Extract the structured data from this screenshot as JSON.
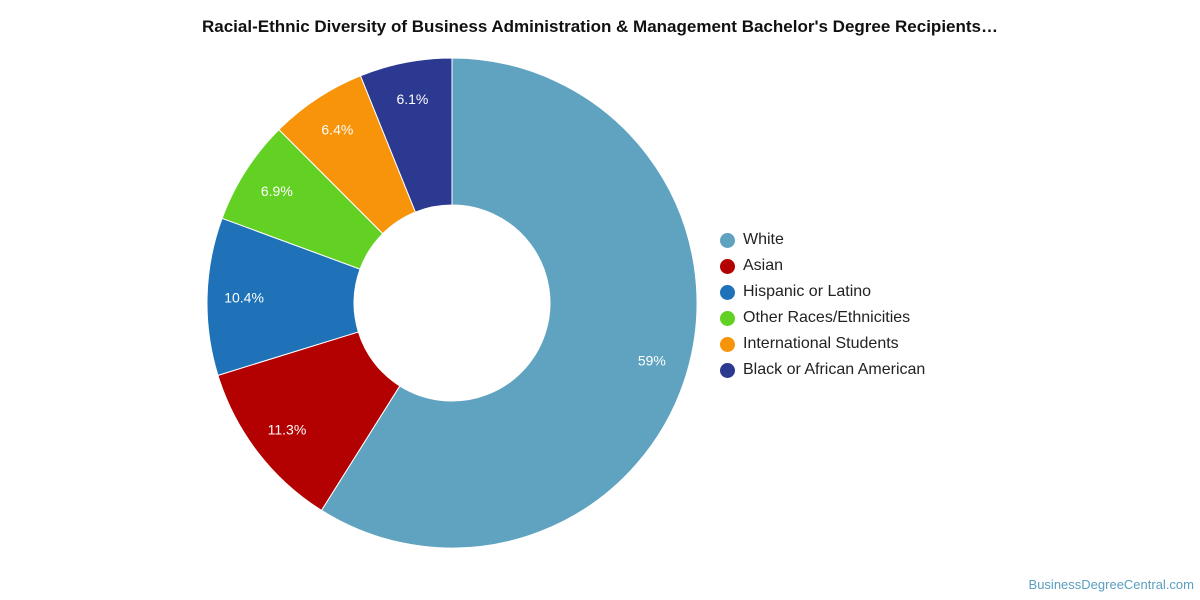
{
  "chart_data": {
    "type": "pie",
    "style": "donut",
    "title": "Racial-Ethnic Diversity of Business Administration & Management Bachelor's Degree Recipients…",
    "start_angle_deg": 0,
    "direction": "clockwise",
    "legend_position": "right",
    "slices": [
      {
        "name": "White",
        "value": 59,
        "label": "59%",
        "color": "#5fa3c0"
      },
      {
        "name": "Asian",
        "value": 11.3,
        "label": "11.3%",
        "color": "#b30000"
      },
      {
        "name": "Hispanic or Latino",
        "value": 10.4,
        "label": "10.4%",
        "color": "#1f72b8"
      },
      {
        "name": "Other Races/Ethnicities",
        "value": 6.9,
        "label": "6.9%",
        "color": "#63d124"
      },
      {
        "name": "International Students",
        "value": 6.4,
        "label": "6.4%",
        "color": "#f7940a"
      },
      {
        "name": "Black or African American",
        "value": 6.1,
        "label": "6.1%",
        "color": "#2b3990"
      }
    ]
  },
  "watermark": "BusinessDegreeCentral.com"
}
